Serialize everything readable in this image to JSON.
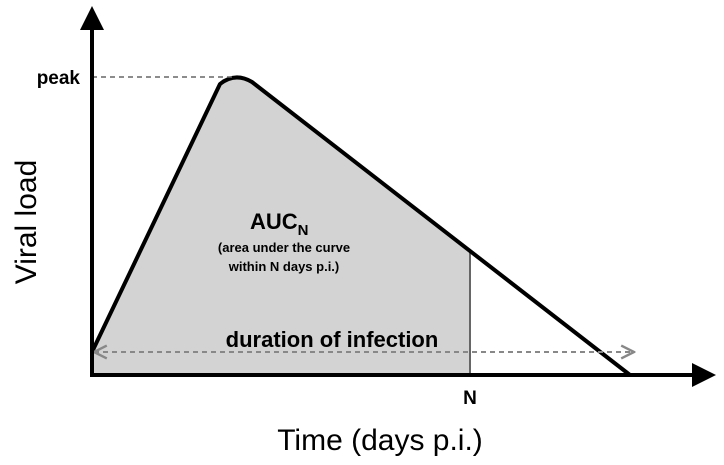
{
  "labels": {
    "peak": "peak",
    "y_axis": "Viral load",
    "x_axis": "Time (days p.i.)",
    "auc": "AUC",
    "auc_subscript": "N",
    "auc_note_1": "(area under the curve",
    "auc_note_2": "within N days p.i.)",
    "duration": "duration of infection",
    "n_tick": "N"
  }
}
